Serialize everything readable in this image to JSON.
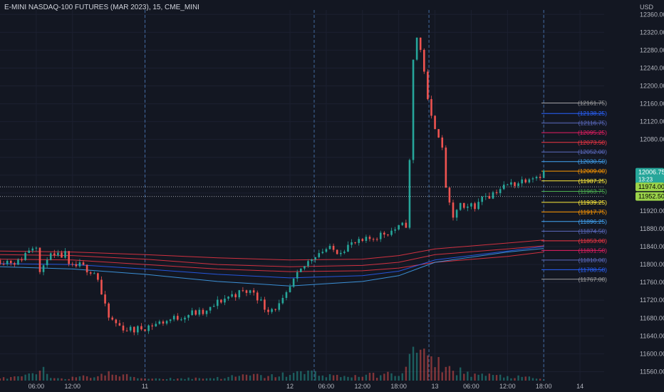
{
  "header": {
    "title": "E-MINI NASDAQ-100 FUTURES (MAR 2023), 15, CME_MINI",
    "currency": "USD"
  },
  "chart_data": {
    "type": "candlestick",
    "title": "E-MINI NASDAQ-100 FUTURES (MAR 2023), 15, CME_MINI",
    "ylim": [
      11540,
      12370
    ],
    "y_ticks": [
      11560,
      11600,
      11640,
      11680,
      11720,
      11760,
      11800,
      11840,
      11880,
      11920,
      11960,
      12000,
      12040,
      12080,
      12120,
      12160,
      12200,
      12240,
      12280,
      12320,
      12360
    ],
    "y_tick_labels": [
      "11560.00",
      "11600.00",
      "11640.00",
      "11680.00",
      "11720.00",
      "11760.00",
      "11800.00",
      "11840.00",
      "11880.00",
      "11920.00",
      "",
      "",
      "",
      "12080.00",
      "12120.00",
      "12160.00",
      "12200.00",
      "12240.00",
      "12280.00",
      "12320.00",
      "12360.00"
    ],
    "x_ticks": [
      "06:00",
      "12:00",
      "11",
      "12",
      "06:00",
      "12:00",
      "18:00",
      "13",
      "06:00",
      "12:00",
      "18:00",
      "14"
    ],
    "x_tick_positions_hours": [
      6,
      12,
      24,
      48,
      54,
      60,
      66,
      72,
      78,
      84,
      90,
      96
    ],
    "session_separators_hours": [
      24,
      52,
      71,
      90
    ],
    "price_path": [
      [
        0,
        11810
      ],
      [
        3,
        11805
      ],
      [
        5,
        11838
      ],
      [
        6.2,
        11848
      ],
      [
        6.8,
        11750
      ],
      [
        7.5,
        11820
      ],
      [
        9,
        11815
      ],
      [
        10.8,
        11822
      ],
      [
        11.5,
        11790
      ],
      [
        13,
        11798
      ],
      [
        14.5,
        11790
      ],
      [
        16,
        11780
      ],
      [
        17,
        11720
      ],
      [
        18,
        11680
      ],
      [
        20,
        11660
      ],
      [
        22,
        11652
      ],
      [
        24,
        11660
      ],
      [
        26,
        11668
      ],
      [
        28,
        11676
      ],
      [
        30,
        11684
      ],
      [
        32,
        11692
      ],
      [
        34,
        11690
      ],
      [
        36,
        11715
      ],
      [
        38,
        11730
      ],
      [
        40,
        11738
      ],
      [
        42,
        11740
      ],
      [
        44,
        11700
      ],
      [
        46,
        11705
      ],
      [
        47,
        11720
      ],
      [
        48.5,
        11760
      ],
      [
        50,
        11790
      ],
      [
        52,
        11822
      ],
      [
        54,
        11835
      ],
      [
        56,
        11830
      ],
      [
        58,
        11845
      ],
      [
        60,
        11850
      ],
      [
        62,
        11862
      ],
      [
        64,
        11872
      ],
      [
        66,
        11882
      ],
      [
        67.5,
        11892
      ],
      [
        68,
        12120
      ],
      [
        68.5,
        12290
      ],
      [
        69,
        12310
      ],
      [
        70,
        12260
      ],
      [
        71,
        12140
      ],
      [
        72,
        12110
      ],
      [
        73,
        12080
      ],
      [
        74,
        11950
      ],
      [
        75,
        11900
      ],
      [
        76,
        11940
      ],
      [
        77,
        11915
      ],
      [
        78,
        11935
      ],
      [
        79,
        11930
      ],
      [
        80,
        11960
      ],
      [
        81,
        11955
      ],
      [
        82,
        11965
      ],
      [
        84,
        11978
      ],
      [
        86,
        11985
      ],
      [
        88,
        12000
      ],
      [
        89,
        11998
      ],
      [
        90,
        12006.75
      ]
    ],
    "volume_path": [
      [
        0,
        8
      ],
      [
        4,
        14
      ],
      [
        6.5,
        30
      ],
      [
        7,
        40
      ],
      [
        8,
        12
      ],
      [
        12,
        10
      ],
      [
        16,
        18
      ],
      [
        18,
        25
      ],
      [
        24,
        8
      ],
      [
        30,
        8
      ],
      [
        36,
        10
      ],
      [
        42,
        20
      ],
      [
        44,
        14
      ],
      [
        48,
        25
      ],
      [
        52,
        30
      ],
      [
        56,
        15
      ],
      [
        60,
        18
      ],
      [
        66,
        25
      ],
      [
        68,
        80
      ],
      [
        69,
        120
      ],
      [
        70,
        110
      ],
      [
        71,
        60
      ],
      [
        72,
        70
      ],
      [
        74,
        45
      ],
      [
        76,
        35
      ],
      [
        78,
        25
      ],
      [
        80,
        20
      ],
      [
        84,
        15
      ],
      [
        88,
        10
      ],
      [
        90,
        4
      ]
    ],
    "moving_averages": [
      {
        "color": "#f23645",
        "points": [
          [
            0,
            11830
          ],
          [
            12,
            11828
          ],
          [
            24,
            11822
          ],
          [
            36,
            11815
          ],
          [
            48,
            11810
          ],
          [
            60,
            11812
          ],
          [
            66,
            11820
          ],
          [
            72,
            11835
          ],
          [
            84,
            11848
          ],
          [
            90,
            11855
          ]
        ]
      },
      {
        "color": "#f23645",
        "points": [
          [
            0,
            11822
          ],
          [
            12,
            11820
          ],
          [
            24,
            11812
          ],
          [
            36,
            11800
          ],
          [
            48,
            11795
          ],
          [
            60,
            11798
          ],
          [
            66,
            11805
          ],
          [
            72,
            11822
          ],
          [
            84,
            11835
          ],
          [
            90,
            11842
          ]
        ]
      },
      {
        "color": "#f23645",
        "points": [
          [
            0,
            11812
          ],
          [
            12,
            11810
          ],
          [
            24,
            11800
          ],
          [
            36,
            11790
          ],
          [
            48,
            11784
          ],
          [
            60,
            11786
          ],
          [
            66,
            11792
          ],
          [
            72,
            11805
          ],
          [
            84,
            11818
          ],
          [
            90,
            11828
          ]
        ]
      },
      {
        "color": "#2962ff",
        "points": [
          [
            0,
            11802
          ],
          [
            12,
            11800
          ],
          [
            24,
            11790
          ],
          [
            36,
            11778
          ],
          [
            48,
            11770
          ],
          [
            60,
            11775
          ],
          [
            66,
            11785
          ],
          [
            72,
            11810
          ],
          [
            84,
            11830
          ],
          [
            90,
            11840
          ]
        ]
      },
      {
        "color": "#42a5f5",
        "points": [
          [
            0,
            11795
          ],
          [
            12,
            11790
          ],
          [
            24,
            11778
          ],
          [
            36,
            11762
          ],
          [
            48,
            11752
          ],
          [
            60,
            11762
          ],
          [
            66,
            11775
          ],
          [
            72,
            11805
          ],
          [
            84,
            11828
          ],
          [
            90,
            11836
          ]
        ]
      }
    ],
    "levels": [
      {
        "label": "(12161.75)",
        "color": "#9e9e9e",
        "value": 12161.75
      },
      {
        "label": "(12138.25)",
        "color": "#2962ff",
        "value": 12138.25
      },
      {
        "label": "(12116.75)",
        "color": "#5c6bc0",
        "value": 12116.75
      },
      {
        "label": "(12095.25)",
        "color": "#e91e63",
        "value": 12095.25
      },
      {
        "label": "(12073.50)",
        "color": "#f23645",
        "value": 12073.5
      },
      {
        "label": "(12052.00)",
        "color": "#5c6bc0",
        "value": 12052
      },
      {
        "label": "(12030.50)",
        "color": "#42a5f5",
        "value": 12030.5
      },
      {
        "label": "(12009.00)",
        "color": "#ff9800",
        "value": 12009
      },
      {
        "label": "(11987.25)",
        "color": "#ffeb3b",
        "value": 11987.25
      },
      {
        "label": "(11963.75)",
        "color": "#4caf50",
        "value": 11963.75
      },
      {
        "label": "(11939.25)",
        "color": "#ffeb3b",
        "value": 11939.25
      },
      {
        "label": "(11917.75)",
        "color": "#ff9800",
        "value": 11917.75
      },
      {
        "label": "(11896.25)",
        "color": "#42a5f5",
        "value": 11896.25
      },
      {
        "label": "(11874.50)",
        "color": "#5c6bc0",
        "value": 11874.5
      },
      {
        "label": "(11853.00)",
        "color": "#f23645",
        "value": 11853
      },
      {
        "label": "(11831.50)",
        "color": "#e91e63",
        "value": 11831.5
      },
      {
        "label": "(11810.00)",
        "color": "#5c6bc0",
        "value": 11810
      },
      {
        "label": "(11788.50)",
        "color": "#2962ff",
        "value": 11788.5
      },
      {
        "label": "(11767.00)",
        "color": "#9e9e9e",
        "value": 11767
      }
    ],
    "price_tags": [
      {
        "text": "12006.75",
        "sub": "13:23",
        "value": 12006.75,
        "bg": "#26a69a",
        "fg": "#ffffff"
      },
      {
        "text": "11974.00",
        "sub": "",
        "value": 11974,
        "bg": "#9bd34a",
        "fg": "#000000"
      },
      {
        "text": "11952.50",
        "sub": "",
        "value": 11952.5,
        "bg": "#9bd34a",
        "fg": "#000000"
      }
    ],
    "dotted_lines": [
      11974,
      11952.5
    ],
    "colors": {
      "up": "#26a69a",
      "down": "#ef5350",
      "background": "#131722"
    }
  }
}
